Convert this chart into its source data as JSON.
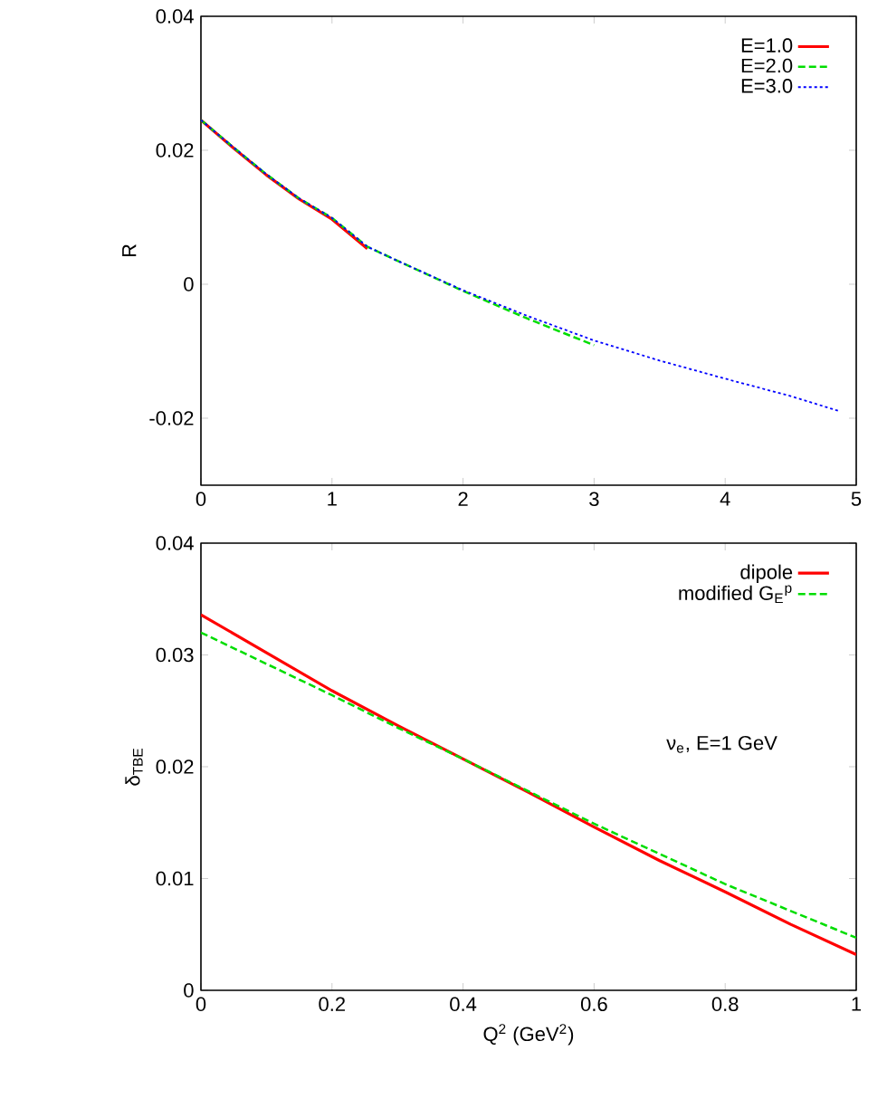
{
  "chart_data": [
    {
      "type": "line",
      "ylabel": "R",
      "xlim": [
        0,
        5
      ],
      "ylim": [
        -0.03,
        0.04
      ],
      "xticks": [
        0,
        1,
        2,
        3,
        4,
        5
      ],
      "yticks": [
        -0.02,
        0,
        0.02,
        0.04
      ],
      "legend": "top right",
      "grid": false,
      "marker": "none",
      "series": [
        {
          "name": "E=1.0",
          "color": "#ff0000",
          "line_style": "solid",
          "x": [
            0,
            0.25,
            0.5,
            0.75,
            1,
            1.27
          ],
          "values": [
            0.0245,
            0.0203,
            0.0163,
            0.0127,
            0.0097,
            0.0053
          ]
        },
        {
          "name": "E=2.0",
          "color": "#00dd00",
          "line_style": "dashed",
          "x": [
            0,
            0.25,
            0.5,
            0.75,
            1,
            1.27,
            1.5,
            2,
            2.5,
            3
          ],
          "values": [
            0.0245,
            0.0204,
            0.0164,
            0.0128,
            0.0099,
            0.0056,
            0.0035,
            -0.001,
            -0.0052,
            -0.0091
          ]
        },
        {
          "name": "E=3.0",
          "color": "#0000ff",
          "line_style": "dotted",
          "x": [
            0,
            0.25,
            0.5,
            0.75,
            1,
            1.27,
            1.5,
            2,
            2.5,
            3,
            3.5,
            4,
            4.5,
            4.88
          ],
          "values": [
            0.0245,
            0.0204,
            0.0164,
            0.0128,
            0.0099,
            0.0056,
            0.0035,
            -0.0009,
            -0.0048,
            -0.0084,
            -0.0114,
            -0.0141,
            -0.0167,
            -0.019
          ]
        }
      ]
    },
    {
      "type": "line",
      "ylabel": "δ$_{TBE}$",
      "xlabel": "Q$^{2}$ (GeV$^{2}$)",
      "xlim": [
        0,
        1
      ],
      "ylim": [
        0,
        0.04
      ],
      "xticks": [
        0,
        0.2,
        0.4,
        0.6,
        0.8,
        1
      ],
      "yticks": [
        0,
        0.01,
        0.02,
        0.03,
        0.04
      ],
      "legend": "top right",
      "grid": false,
      "marker": "none",
      "annotations": [
        "ν$_{e}$, E=1 GeV"
      ],
      "series": [
        {
          "name": "dipole",
          "color": "#ff0000",
          "line_style": "solid",
          "x": [
            0,
            0.1,
            0.2,
            0.3,
            0.4,
            0.5,
            0.6,
            0.7,
            0.8,
            0.9,
            1
          ],
          "values": [
            0.0336,
            0.0302,
            0.0268,
            0.0237,
            0.0207,
            0.0177,
            0.0146,
            0.0116,
            0.0088,
            0.0059,
            0.0032
          ]
        },
        {
          "name": "modified G$_{E}$$^{p}$",
          "color": "#00dd00",
          "line_style": "dashed",
          "x": [
            0,
            0.1,
            0.2,
            0.3,
            0.4,
            0.5,
            0.6,
            0.7,
            0.8,
            0.9,
            1
          ],
          "values": [
            0.032,
            0.0292,
            0.0264,
            0.0235,
            0.0207,
            0.0178,
            0.0149,
            0.0122,
            0.0095,
            0.0071,
            0.0047
          ]
        }
      ]
    }
  ]
}
